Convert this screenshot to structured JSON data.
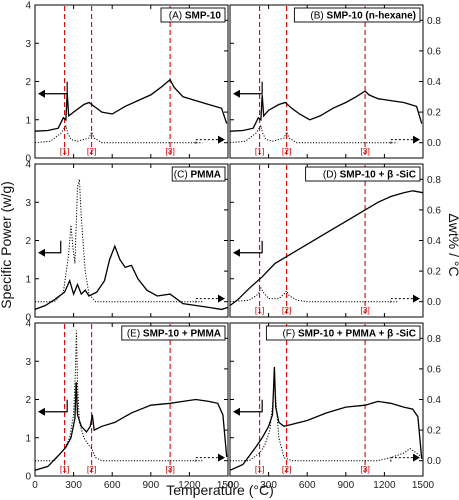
{
  "figure": {
    "ylabel_left": "Specific Power (w/g)",
    "ylabel_right": "Δwt% / °C",
    "xlabel": "Temperature (°C)"
  },
  "chart_data": [
    {
      "type": "line",
      "panel": "A",
      "label": "(A)",
      "name": "SMP-10",
      "xlim": [
        0,
        1500
      ],
      "ylim_left": [
        0,
        4
      ],
      "ylim_right": [
        -0.1,
        0.9
      ],
      "x_ticks": [
        0,
        300,
        600,
        900,
        1200,
        1500
      ],
      "y_ticks_left": [
        0,
        1,
        2,
        3,
        4
      ],
      "y_ticks_right": [
        0.0,
        0.2,
        0.4,
        0.6,
        0.8
      ],
      "markers": [
        {
          "label": "[1]",
          "x": 230
        },
        {
          "label": "[2]",
          "x": 440
        },
        {
          "label": "[3]",
          "x": 1050
        }
      ],
      "power": [
        [
          0,
          0.7
        ],
        [
          100,
          0.72
        ],
        [
          180,
          0.78
        ],
        [
          220,
          1.05
        ],
        [
          240,
          1.0
        ],
        [
          250,
          1.7
        ],
        [
          262,
          1.1
        ],
        [
          300,
          1.2
        ],
        [
          380,
          1.4
        ],
        [
          420,
          1.45
        ],
        [
          460,
          1.35
        ],
        [
          520,
          1.2
        ],
        [
          600,
          1.15
        ],
        [
          700,
          1.35
        ],
        [
          800,
          1.5
        ],
        [
          900,
          1.65
        ],
        [
          980,
          1.85
        ],
        [
          1050,
          2.05
        ],
        [
          1080,
          1.85
        ],
        [
          1150,
          1.6
        ],
        [
          1250,
          1.5
        ],
        [
          1350,
          1.4
        ],
        [
          1450,
          1.3
        ],
        [
          1490,
          0.9
        ]
      ],
      "dwt": [
        [
          0,
          0.0
        ],
        [
          120,
          0.01
        ],
        [
          200,
          0.06
        ],
        [
          240,
          0.11
        ],
        [
          255,
          0.06
        ],
        [
          280,
          0.02
        ],
        [
          330,
          0.01
        ],
        [
          420,
          0.03
        ],
        [
          440,
          0.07
        ],
        [
          460,
          0.03
        ],
        [
          520,
          0.0
        ],
        [
          1300,
          0.0
        ]
      ],
      "left_arrow_x": 250,
      "right_arrow_x": 1250
    },
    {
      "type": "line",
      "panel": "B",
      "label": "(B)",
      "name": "SMP-10 (n-hexane)",
      "xlim": [
        0,
        1500
      ],
      "ylim_left": [
        0,
        4
      ],
      "ylim_right": [
        -0.1,
        0.9
      ],
      "x_ticks": [
        0,
        300,
        600,
        900,
        1200,
        1500
      ],
      "y_ticks_left": [
        0,
        1,
        2,
        3,
        4
      ],
      "y_ticks_right": [
        0.0,
        0.2,
        0.4,
        0.6,
        0.8
      ],
      "markers": [
        {
          "label": "[1]",
          "x": 230
        },
        {
          "label": "[2]",
          "x": 440
        },
        {
          "label": "[3]",
          "x": 1050
        }
      ],
      "power": [
        [
          0,
          0.7
        ],
        [
          100,
          0.72
        ],
        [
          180,
          0.78
        ],
        [
          220,
          1.05
        ],
        [
          240,
          1.0
        ],
        [
          250,
          1.65
        ],
        [
          262,
          1.1
        ],
        [
          300,
          1.25
        ],
        [
          380,
          1.4
        ],
        [
          430,
          1.45
        ],
        [
          480,
          1.3
        ],
        [
          540,
          1.15
        ],
        [
          620,
          1.0
        ],
        [
          700,
          1.1
        ],
        [
          800,
          1.3
        ],
        [
          900,
          1.45
        ],
        [
          980,
          1.6
        ],
        [
          1050,
          1.75
        ],
        [
          1080,
          1.65
        ],
        [
          1150,
          1.55
        ],
        [
          1250,
          1.5
        ],
        [
          1350,
          1.45
        ],
        [
          1450,
          1.35
        ],
        [
          1490,
          0.9
        ]
      ],
      "dwt": [
        [
          0,
          0.0
        ],
        [
          120,
          0.01
        ],
        [
          200,
          0.06
        ],
        [
          240,
          0.11
        ],
        [
          255,
          0.06
        ],
        [
          280,
          0.02
        ],
        [
          330,
          0.01
        ],
        [
          420,
          0.03
        ],
        [
          440,
          0.07
        ],
        [
          460,
          0.03
        ],
        [
          520,
          0.0
        ],
        [
          1300,
          0.0
        ]
      ],
      "left_arrow_x": 250,
      "right_arrow_x": 1250
    },
    {
      "type": "line",
      "panel": "C",
      "label": "(C)",
      "name": "PMMA",
      "xlim": [
        0,
        1500
      ],
      "ylim_left": [
        0,
        4
      ],
      "ylim_right": [
        -0.1,
        0.9
      ],
      "x_ticks": [
        0,
        300,
        600,
        900,
        1200,
        1500
      ],
      "y_ticks_left": [
        0,
        1,
        2,
        3,
        4
      ],
      "y_ticks_right": [
        0.0,
        0.2,
        0.4,
        0.6,
        0.8
      ],
      "markers": [],
      "power": [
        [
          0,
          0.2
        ],
        [
          80,
          0.3
        ],
        [
          150,
          0.45
        ],
        [
          230,
          0.65
        ],
        [
          270,
          0.95
        ],
        [
          300,
          0.6
        ],
        [
          330,
          0.85
        ],
        [
          360,
          0.6
        ],
        [
          390,
          0.7
        ],
        [
          420,
          0.55
        ],
        [
          480,
          0.65
        ],
        [
          540,
          0.95
        ],
        [
          580,
          1.5
        ],
        [
          620,
          1.85
        ],
        [
          660,
          1.5
        ],
        [
          700,
          1.3
        ],
        [
          750,
          1.35
        ],
        [
          800,
          1.0
        ],
        [
          870,
          0.7
        ],
        [
          950,
          0.55
        ],
        [
          1050,
          0.6
        ],
        [
          1150,
          0.35
        ],
        [
          1250,
          0.3
        ],
        [
          1350,
          0.25
        ],
        [
          1450,
          0.2
        ],
        [
          1500,
          0.25
        ]
      ],
      "dwt": [
        [
          0,
          0.0
        ],
        [
          150,
          0.0
        ],
        [
          220,
          0.06
        ],
        [
          260,
          0.3
        ],
        [
          280,
          0.5
        ],
        [
          295,
          0.35
        ],
        [
          310,
          0.25
        ],
        [
          330,
          0.75
        ],
        [
          345,
          0.8
        ],
        [
          360,
          0.55
        ],
        [
          390,
          0.2
        ],
        [
          420,
          0.05
        ],
        [
          470,
          0.0
        ],
        [
          1300,
          0.0
        ]
      ],
      "left_arrow_x": 200,
      "right_arrow_x": 1250
    },
    {
      "type": "line",
      "panel": "D",
      "label": "(D)",
      "name": "SMP-10 + β -SiC",
      "xlim": [
        0,
        1500
      ],
      "ylim_left": [
        0,
        4
      ],
      "ylim_right": [
        -0.1,
        0.9
      ],
      "x_ticks": [
        0,
        300,
        600,
        900,
        1200,
        1500
      ],
      "y_ticks_left": [
        0,
        1,
        2,
        3,
        4
      ],
      "y_ticks_right": [
        0.0,
        0.2,
        0.4,
        0.6,
        0.8
      ],
      "markers": [
        {
          "label": "[1]",
          "x": 230
        },
        {
          "label": "[2]",
          "x": 440
        },
        {
          "label": "[3]",
          "x": 1050
        }
      ],
      "power": [
        [
          0,
          0.3
        ],
        [
          60,
          0.45
        ],
        [
          150,
          0.75
        ],
        [
          250,
          1.05
        ],
        [
          350,
          1.4
        ],
        [
          450,
          1.6
        ],
        [
          600,
          1.9
        ],
        [
          750,
          2.2
        ],
        [
          900,
          2.5
        ],
        [
          1050,
          2.8
        ],
        [
          1150,
          3.0
        ],
        [
          1250,
          3.15
        ],
        [
          1350,
          3.25
        ],
        [
          1420,
          3.3
        ],
        [
          1500,
          3.25
        ]
      ],
      "dwt": [
        [
          0,
          0.0
        ],
        [
          150,
          0.01
        ],
        [
          220,
          0.05
        ],
        [
          240,
          0.09
        ],
        [
          260,
          0.06
        ],
        [
          300,
          0.02
        ],
        [
          380,
          0.02
        ],
        [
          420,
          0.05
        ],
        [
          440,
          0.07
        ],
        [
          460,
          0.04
        ],
        [
          520,
          0.01
        ],
        [
          600,
          0.0
        ],
        [
          1300,
          0.0
        ]
      ],
      "left_arrow_x": 250,
      "right_arrow_x": 1250
    },
    {
      "type": "line",
      "panel": "E",
      "label": "(E)",
      "name": "SMP-10 + PMMA",
      "xlim": [
        0,
        1500
      ],
      "ylim_left": [
        0,
        4
      ],
      "ylim_right": [
        -0.1,
        0.9
      ],
      "x_ticks": [
        0,
        300,
        600,
        900,
        1200,
        1500
      ],
      "y_ticks_left": [
        0,
        1,
        2,
        3,
        4
      ],
      "y_ticks_right": [
        0.0,
        0.2,
        0.4,
        0.6,
        0.8
      ],
      "markers": [
        {
          "label": "[1]",
          "x": 230
        },
        {
          "label": "[2]",
          "x": 440
        },
        {
          "label": "[3]",
          "x": 1050
        }
      ],
      "power": [
        [
          0,
          0.15
        ],
        [
          100,
          0.25
        ],
        [
          200,
          0.6
        ],
        [
          240,
          0.75
        ],
        [
          280,
          1.0
        ],
        [
          310,
          1.5
        ],
        [
          320,
          2.45
        ],
        [
          330,
          1.6
        ],
        [
          360,
          1.3
        ],
        [
          400,
          1.15
        ],
        [
          430,
          1.3
        ],
        [
          445,
          1.6
        ],
        [
          460,
          1.2
        ],
        [
          520,
          1.3
        ],
        [
          620,
          1.4
        ],
        [
          750,
          1.65
        ],
        [
          900,
          1.85
        ],
        [
          1050,
          1.9
        ],
        [
          1150,
          1.95
        ],
        [
          1250,
          2.0
        ],
        [
          1350,
          1.95
        ],
        [
          1420,
          1.9
        ],
        [
          1460,
          1.6
        ],
        [
          1490,
          0.5
        ]
      ],
      "dwt": [
        [
          0,
          0.0
        ],
        [
          150,
          0.0
        ],
        [
          230,
          0.08
        ],
        [
          270,
          0.15
        ],
        [
          300,
          0.3
        ],
        [
          315,
          0.6
        ],
        [
          322,
          0.85
        ],
        [
          330,
          0.5
        ],
        [
          345,
          0.25
        ],
        [
          380,
          0.15
        ],
        [
          420,
          0.1
        ],
        [
          440,
          0.08
        ],
        [
          470,
          0.02
        ],
        [
          520,
          0.0
        ],
        [
          1300,
          0.0
        ]
      ],
      "left_arrow_x": 250,
      "right_arrow_x": 1250
    },
    {
      "type": "line",
      "panel": "F",
      "label": "(F)",
      "name": "SMP-10 + PMMA + β -SiC",
      "xlim": [
        0,
        1500
      ],
      "ylim_left": [
        0,
        4
      ],
      "ylim_right": [
        -0.1,
        0.9
      ],
      "x_ticks": [
        0,
        300,
        600,
        900,
        1200,
        1500
      ],
      "y_ticks_left": [
        0,
        1,
        2,
        3,
        4
      ],
      "y_ticks_right": [
        0.0,
        0.2,
        0.4,
        0.6,
        0.8
      ],
      "markers": [
        {
          "label": "[1]",
          "x": 230
        },
        {
          "label": "[2]",
          "x": 440
        },
        {
          "label": "[3]",
          "x": 1050
        }
      ],
      "power": [
        [
          0,
          0.15
        ],
        [
          100,
          0.3
        ],
        [
          200,
          0.75
        ],
        [
          250,
          1.0
        ],
        [
          300,
          1.3
        ],
        [
          330,
          1.6
        ],
        [
          345,
          2.85
        ],
        [
          355,
          1.8
        ],
        [
          380,
          1.4
        ],
        [
          420,
          1.3
        ],
        [
          480,
          1.35
        ],
        [
          600,
          1.45
        ],
        [
          750,
          1.65
        ],
        [
          900,
          1.8
        ],
        [
          1050,
          1.85
        ],
        [
          1150,
          1.95
        ],
        [
          1250,
          1.9
        ],
        [
          1350,
          1.8
        ],
        [
          1420,
          1.75
        ],
        [
          1460,
          1.55
        ],
        [
          1490,
          0.45
        ]
      ],
      "dwt": [
        [
          0,
          0.0
        ],
        [
          150,
          0.0
        ],
        [
          230,
          0.05
        ],
        [
          270,
          0.1
        ],
        [
          310,
          0.2
        ],
        [
          335,
          0.4
        ],
        [
          345,
          0.55
        ],
        [
          360,
          0.35
        ],
        [
          380,
          0.15
        ],
        [
          420,
          0.02
        ],
        [
          480,
          0.0
        ],
        [
          1150,
          0.0
        ],
        [
          1250,
          0.02
        ],
        [
          1350,
          0.05
        ],
        [
          1400,
          0.08
        ],
        [
          1450,
          0.05
        ],
        [
          1480,
          0.03
        ]
      ],
      "left_arrow_x": 250,
      "right_arrow_x": 1250
    }
  ]
}
